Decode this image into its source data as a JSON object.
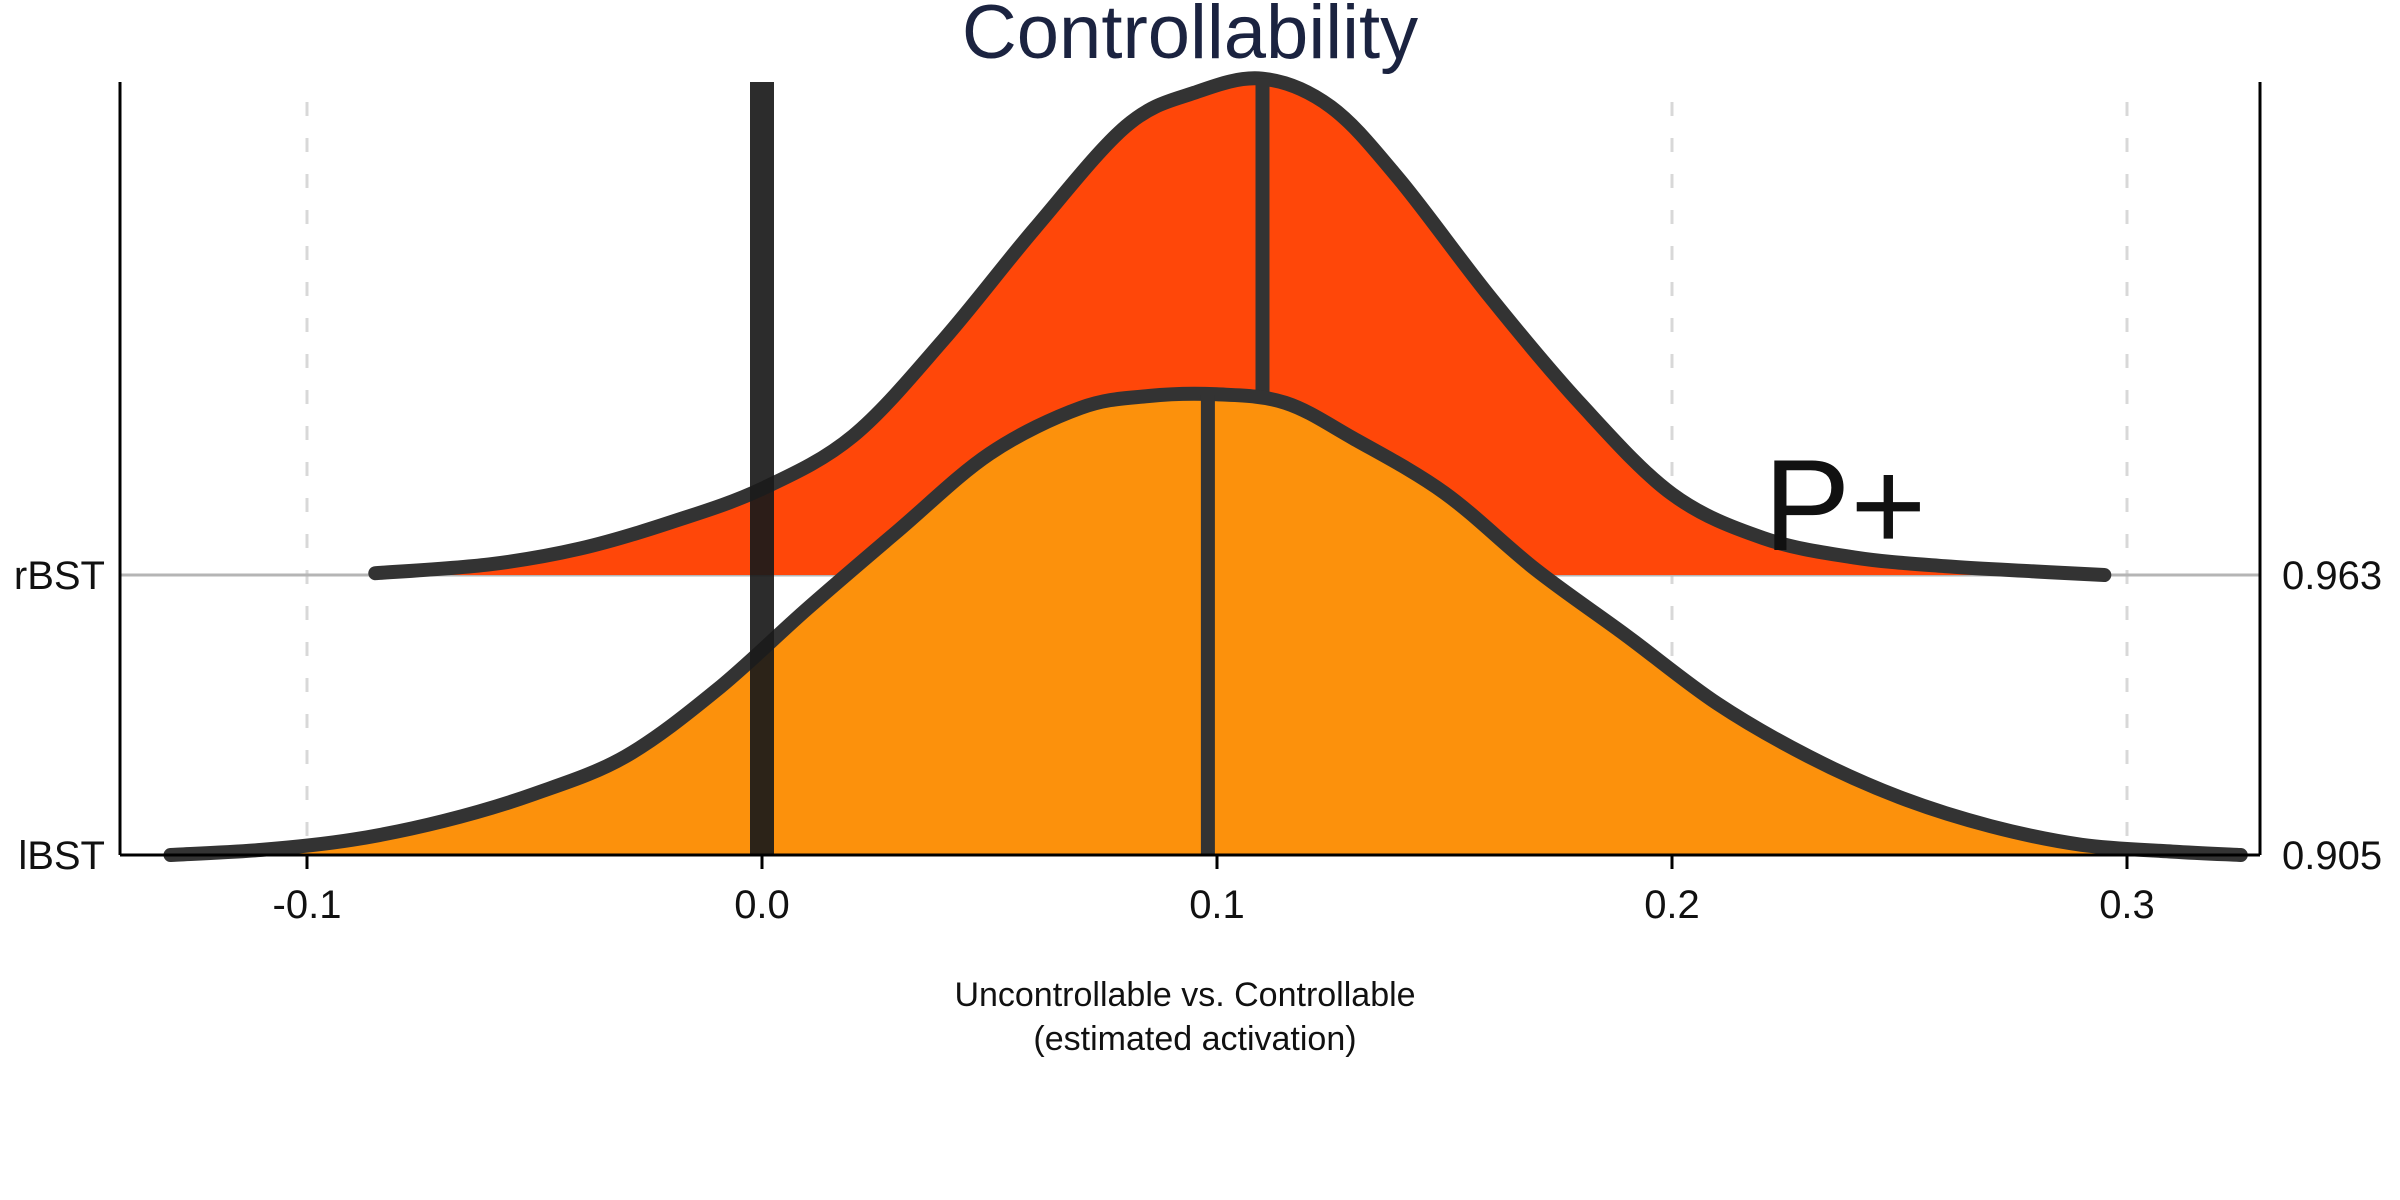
{
  "chart_data": {
    "type": "area",
    "title": "Controllability",
    "xlabel": [
      "Uncontrollable vs. Controllable",
      "(estimated activation)"
    ],
    "ylabel": "",
    "xlim": [
      -0.142,
      0.33
    ],
    "xticks": [
      "-0.1",
      "0.0",
      "0.1",
      "0.2",
      "0.3"
    ],
    "xtick_values": [
      -0.1,
      0.0,
      0.1,
      0.2,
      0.3
    ],
    "grid": "vertical dashed at x ticks",
    "reference_line_x": 0.0,
    "annotation": "P+",
    "series": [
      {
        "name": "rBST",
        "value_label": "0.963",
        "color": "#ff4709",
        "median": 0.11,
        "x": [
          -0.085,
          -0.06,
          -0.04,
          -0.02,
          0.0,
          0.02,
          0.04,
          0.06,
          0.08,
          0.095,
          0.11,
          0.125,
          0.14,
          0.16,
          0.18,
          0.2,
          0.22,
          0.24,
          0.26,
          0.28,
          0.295
        ],
        "density": [
          0.01,
          0.06,
          0.15,
          0.3,
          0.49,
          0.79,
          1.34,
          1.97,
          2.55,
          2.74,
          2.82,
          2.66,
          2.25,
          1.58,
          0.97,
          0.46,
          0.21,
          0.1,
          0.05,
          0.02,
          0.0
        ]
      },
      {
        "name": "lBST",
        "value_label": "0.905",
        "color": "#fc910c",
        "median": 0.098,
        "x": [
          -0.13,
          -0.11,
          -0.09,
          -0.07,
          -0.05,
          -0.03,
          -0.01,
          0.01,
          0.03,
          0.05,
          0.07,
          0.085,
          0.1,
          0.115,
          0.13,
          0.15,
          0.17,
          0.19,
          0.21,
          0.23,
          0.25,
          0.27,
          0.29,
          0.31,
          0.325
        ],
        "density": [
          0.0,
          0.03,
          0.09,
          0.2,
          0.36,
          0.58,
          0.97,
          1.45,
          1.91,
          2.36,
          2.63,
          2.7,
          2.71,
          2.66,
          2.45,
          2.13,
          1.68,
          1.29,
          0.89,
          0.58,
          0.34,
          0.17,
          0.06,
          0.02,
          0.0
        ]
      }
    ]
  }
}
